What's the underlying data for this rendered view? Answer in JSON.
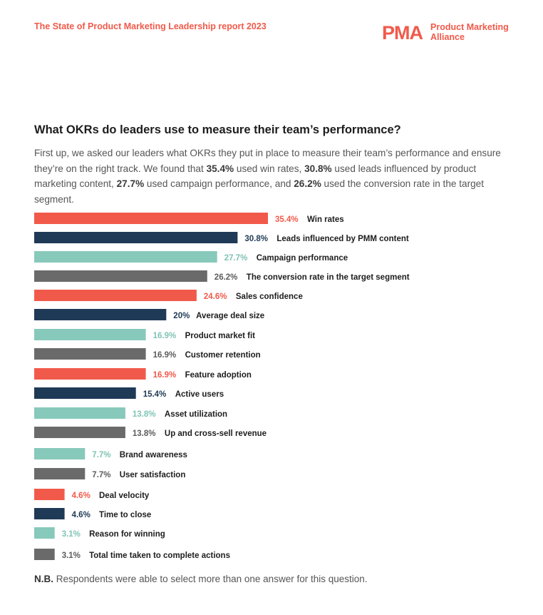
{
  "header": {
    "report_title": "The State of Product Marketing Leadership report 2023",
    "logo_mark": "PMA",
    "logo_line1": "Product Marketing",
    "logo_line2": "Alliance"
  },
  "heading": "What OKRs do leaders use to measure their team’s performance?",
  "intro": {
    "t1": "First up, we asked our leaders what OKRs they put in place to measure their team’s performance and ensure they’re on the right track. We found that ",
    "b1": "35.4%",
    "t2": " used win rates, ",
    "b2": "30.8%",
    "t3": " used leads influenced by product marketing content, ",
    "b3": "27.7%",
    "t4": " used campaign performance, and ",
    "b4": "26.2%",
    "t5": " used the conversion rate in the target segment."
  },
  "footnote": {
    "bold": "N.B.",
    "text": " Respondents were able to select more than one answer for this question."
  },
  "colors": {
    "coral": "#f15a4a",
    "navy": "#1f3a56",
    "teal": "#87c9bb",
    "gray": "#6a6a6a"
  },
  "chart_data": {
    "type": "bar",
    "orientation": "horizontal",
    "unit": "%",
    "xlim": [
      0,
      35.4
    ],
    "categories": [
      "Win rates",
      "Leads influenced by PMM content",
      "Campaign performance",
      "The conversion rate in the target segment",
      "Sales confidence",
      "Average deal size",
      "Product market fit",
      "Customer retention",
      "Feature adoption",
      "Active users",
      "Asset utilization",
      "Up and cross-sell revenue",
      "Brand awareness",
      "User satisfaction",
      "Deal velocity",
      "Time to close",
      "Reason for winning",
      "Total time taken to complete actions"
    ],
    "values": [
      35.4,
      30.8,
      27.7,
      26.2,
      24.6,
      20,
      16.9,
      16.9,
      16.9,
      15.4,
      13.8,
      13.8,
      7.7,
      7.7,
      4.6,
      4.6,
      3.1,
      3.1
    ],
    "value_labels": [
      "35.4%",
      "30.8%",
      "27.7%",
      "26.2%",
      "24.6%",
      "20%",
      "16.9%",
      "16.9%",
      "16.9%",
      "15.4%",
      "13.8%",
      "13.8%",
      "7.7%",
      "7.7%",
      "4.6%",
      "4.6%",
      "3.1%",
      "3.1%"
    ],
    "bar_colors": [
      "coral",
      "navy",
      "teal",
      "gray",
      "coral",
      "navy",
      "teal",
      "gray",
      "coral",
      "navy",
      "teal",
      "gray",
      "teal",
      "gray",
      "coral",
      "navy",
      "teal",
      "gray"
    ],
    "grid": false,
    "legend": "none"
  }
}
